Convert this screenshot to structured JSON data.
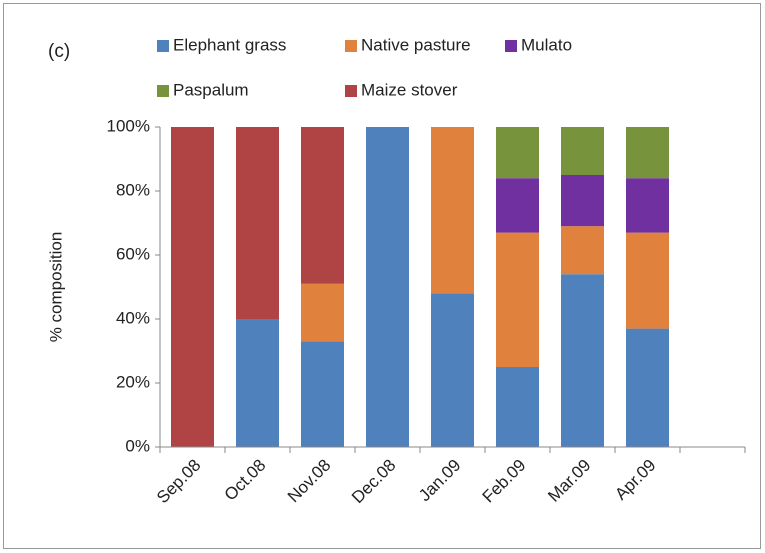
{
  "chart_data": {
    "type": "stacked_bar",
    "annotation": "(c)",
    "ylabel": "% composition",
    "categories": [
      "Sep.08",
      "Oct.08",
      "Nov.08",
      "Dec.08",
      "Jan.09",
      "Feb.09",
      "Mar.09",
      "Apr.09",
      null
    ],
    "series": [
      {
        "name": "Elephant grass",
        "color": "#4f81bd",
        "values": [
          0,
          40,
          33,
          100,
          48,
          25,
          54,
          37,
          null
        ]
      },
      {
        "name": "Native pasture",
        "color": "#e0823d",
        "values": [
          0,
          0,
          18,
          0,
          52,
          42,
          15,
          30,
          null
        ]
      },
      {
        "name": "Mulato",
        "color": "#7030a0",
        "values": [
          0,
          0,
          0,
          0,
          0,
          17,
          16,
          17,
          null
        ]
      },
      {
        "name": "Paspalum",
        "color": "#77933c",
        "values": [
          0,
          0,
          0,
          0,
          0,
          16,
          15,
          16,
          null
        ]
      },
      {
        "name": "Maize stover",
        "color": "#b04445",
        "values": [
          100,
          60,
          49,
          0,
          0,
          0,
          0,
          0,
          null
        ]
      }
    ],
    "ylim": [
      0,
      100
    ],
    "yticks": [
      {
        "value": 0,
        "label": "0%"
      },
      {
        "value": 20,
        "label": "20%"
      },
      {
        "value": 40,
        "label": "40%"
      },
      {
        "value": 60,
        "label": "60%"
      },
      {
        "value": 80,
        "label": "80%"
      },
      {
        "value": 100,
        "label": "100%"
      }
    ],
    "legend": "top"
  }
}
